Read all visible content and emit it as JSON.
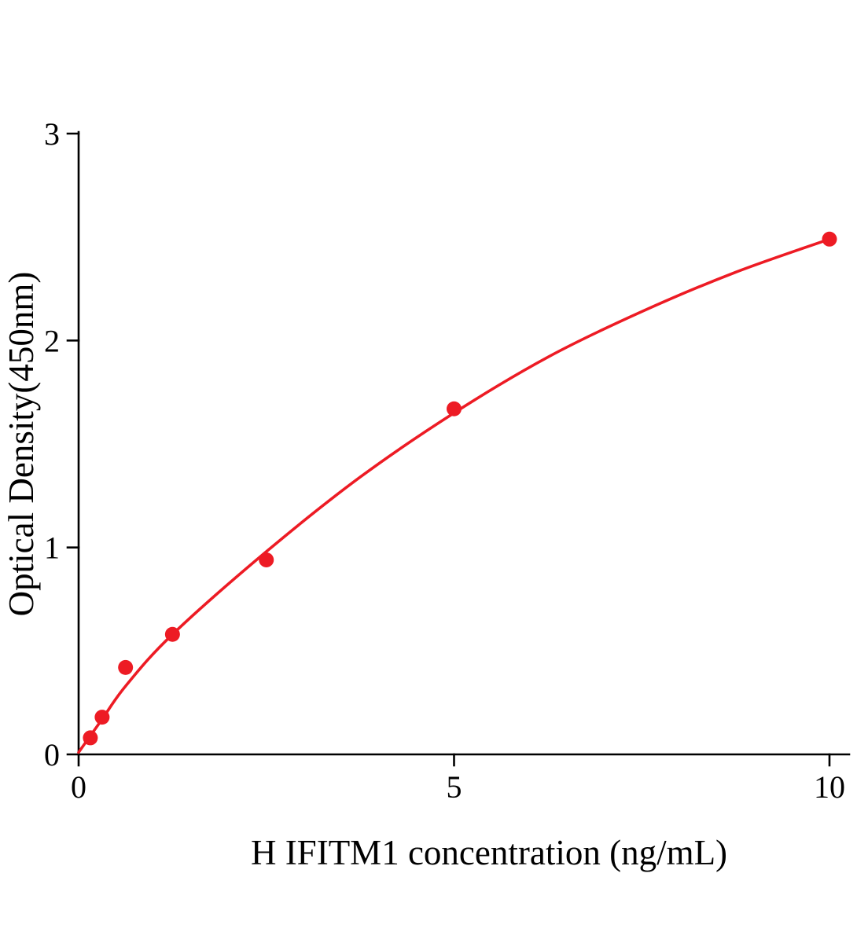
{
  "chart_data": {
    "type": "scatter",
    "title": "",
    "xlabel": "H IFITM1 concentration (ng/mL)",
    "ylabel": "Optical Density(450nm)",
    "xlim": [
      0,
      10
    ],
    "ylim": [
      0,
      3
    ],
    "xticks": [
      0,
      5,
      10
    ],
    "yticks": [
      0,
      1,
      2,
      3
    ],
    "grid": false,
    "legend": false,
    "axis_color": "#000000",
    "background": "#ffffff",
    "series": [
      {
        "name": "H IFITM1 standard points",
        "type": "scatter",
        "x": [
          0.156,
          0.313,
          0.625,
          1.25,
          2.5,
          5,
          10
        ],
        "y": [
          0.08,
          0.18,
          0.42,
          0.58,
          0.94,
          1.67,
          2.49
        ],
        "point_color": "#ed1b24",
        "point_radius": 9.5
      },
      {
        "name": "fitted standard curve",
        "type": "line",
        "x": [
          0,
          0.156,
          0.313,
          0.625,
          1.25,
          2.5,
          3.75,
          5,
          6.25,
          7.5,
          8.75,
          10
        ],
        "y": [
          0.01,
          0.09,
          0.17,
          0.33,
          0.58,
          0.98,
          1.34,
          1.65,
          1.92,
          2.14,
          2.33,
          2.49
        ],
        "line_color": "#ed1b24"
      }
    ]
  }
}
